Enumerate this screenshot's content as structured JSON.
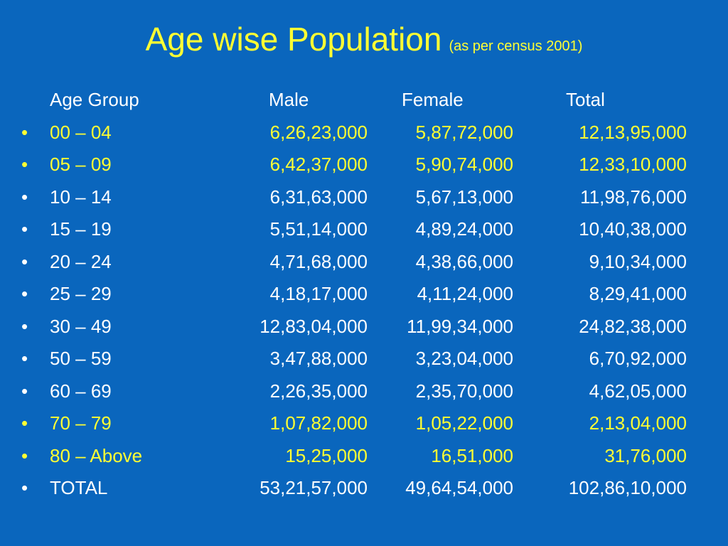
{
  "title": {
    "main": "Age wise Population",
    "sub": "(as per census 2001)"
  },
  "colors": {
    "background": "#0a66bd",
    "highlight": "#ffff33",
    "text": "#ffffff"
  },
  "bullet_symbol": "•",
  "header": {
    "age_group": "Age Group",
    "male": "Male",
    "female": "Female",
    "total": "Total"
  },
  "rows": [
    {
      "age": "00 – 04",
      "male": "6,26,23,000",
      "female": "5,87,72,000",
      "total": "12,13,95,000",
      "highlight": true
    },
    {
      "age": "05 – 09",
      "male": "6,42,37,000",
      "female": "5,90,74,000",
      "total": "12,33,10,000",
      "highlight": true
    },
    {
      "age": "10 – 14",
      "male": "6,31,63,000",
      "female": "5,67,13,000",
      "total": "11,98,76,000",
      "highlight": false
    },
    {
      "age": "15 – 19",
      "male": "5,51,14,000",
      "female": "4,89,24,000",
      "total": "10,40,38,000",
      "highlight": false
    },
    {
      "age": "20 – 24",
      "male": "4,71,68,000",
      "female": "4,38,66,000",
      "total": "9,10,34,000",
      "highlight": false
    },
    {
      "age": "25 – 29",
      "male": "4,18,17,000",
      "female": "4,11,24,000",
      "total": "8,29,41,000",
      "highlight": false
    },
    {
      "age": "30 – 49",
      "male": "12,83,04,000",
      "female": "11,99,34,000",
      "total": "24,82,38,000",
      "highlight": false
    },
    {
      "age": "50 – 59",
      "male": "3,47,88,000",
      "female": "3,23,04,000",
      "total": "6,70,92,000",
      "highlight": false
    },
    {
      "age": "60 – 69",
      "male": "2,26,35,000",
      "female": "2,35,70,000",
      "total": "4,62,05,000",
      "highlight": false
    },
    {
      "age": "70 – 79",
      "male": "1,07,82,000",
      "female": "1,05,22,000",
      "total": "2,13,04,000",
      "highlight": true
    },
    {
      "age": "80 – Above",
      "male": "15,25,000",
      "female": "16,51,000",
      "total": "31,76,000",
      "highlight": true
    },
    {
      "age": "TOTAL",
      "male": "53,21,57,000",
      "female": "49,64,54,000",
      "total": "102,86,10,000",
      "highlight": false
    }
  ]
}
